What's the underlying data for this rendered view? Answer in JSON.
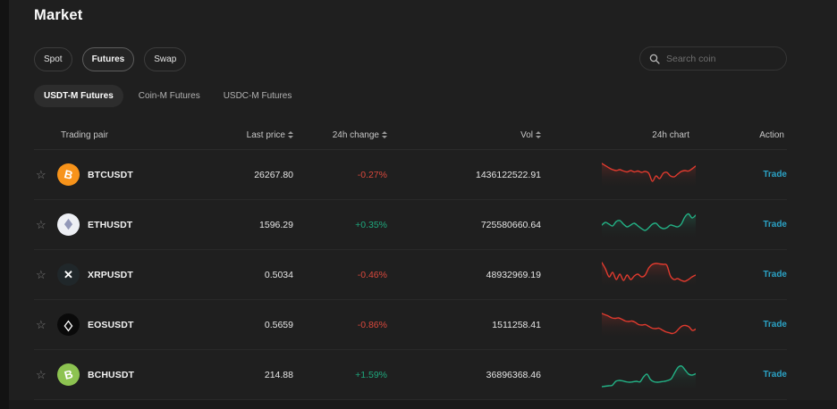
{
  "page": {
    "title": "Market"
  },
  "tabs": [
    {
      "label": "Spot",
      "active": false
    },
    {
      "label": "Futures",
      "active": true
    },
    {
      "label": "Swap",
      "active": false
    }
  ],
  "search": {
    "placeholder": "Search coin",
    "icon": "search-icon"
  },
  "subtabs": [
    {
      "label": "USDT-M Futures",
      "active": true
    },
    {
      "label": "Coin-M Futures",
      "active": false
    },
    {
      "label": "USDC-M Futures",
      "active": false
    }
  ],
  "table": {
    "headers": {
      "pair": "Trading pair",
      "price": "Last price",
      "change": "24h change",
      "vol": "Vol",
      "chart": "24h chart",
      "action": "Action"
    },
    "rows": [
      {
        "symbol": "BTCUSDT",
        "icon": {
          "glyph": "B",
          "bg": "#f7931a",
          "fg": "#ffffff",
          "rot": 14,
          "sy": 1,
          "size": 13
        },
        "price": "26267.80",
        "change": "-0.27%",
        "direction": "down",
        "vol": "1436122522.91",
        "action": "Trade",
        "spark": [
          7,
          9.5,
          12,
          14,
          15,
          14,
          15.5,
          16.5,
          15,
          16.5,
          15.5,
          17,
          16,
          18,
          27,
          21,
          24,
          18,
          17,
          21,
          22,
          19,
          16,
          15,
          15.5,
          13,
          10
        ]
      },
      {
        "symbol": "ETHUSDT",
        "icon": {
          "glyph": "◆",
          "bg": "#edeff4",
          "fg": "#9298b8",
          "rot": 0,
          "sy": 1.35,
          "size": 11
        },
        "price": "1596.29",
        "change": "+0.35%",
        "direction": "up",
        "vol": "725580660.64",
        "action": "Trade",
        "spark": [
          20,
          17,
          19,
          21,
          16,
          15,
          19,
          22,
          20,
          18,
          21,
          24,
          26,
          23,
          19,
          18,
          22,
          24,
          23,
          20,
          21,
          22,
          19,
          11,
          7.5,
          12,
          9
        ]
      },
      {
        "symbol": "XRPUSDT",
        "icon": {
          "glyph": "✕",
          "bg": "#20272a",
          "fg": "#ffffff",
          "rot": 0,
          "sy": 1,
          "size": 13
        },
        "price": "0.5034",
        "change": "-0.46%",
        "direction": "down",
        "vol": "48932969.19",
        "action": "Trade",
        "spark": [
          6,
          13,
          22,
          17,
          25,
          19,
          26,
          20,
          25,
          21,
          19,
          22,
          20,
          12,
          8,
          7,
          7.5,
          8,
          9,
          21,
          25,
          24,
          26,
          27,
          25,
          22,
          20
        ]
      },
      {
        "symbol": "EOSUSDT",
        "icon": {
          "glyph": "◇",
          "bg": "#0a0a0a",
          "fg": "#ffffff",
          "rot": 0,
          "sy": 1.3,
          "size": 12
        },
        "price": "0.5659",
        "change": "-0.86%",
        "direction": "down",
        "vol": "1511258.41",
        "action": "Trade",
        "spark": [
          7,
          8.5,
          10,
          12,
          12.5,
          12,
          13.5,
          15.5,
          16,
          15.5,
          17,
          19.5,
          20,
          19.5,
          21.5,
          23.5,
          24,
          23.5,
          25.5,
          27.5,
          28.5,
          29.5,
          28,
          24,
          21,
          20.5,
          22,
          26,
          24.5
        ]
      },
      {
        "symbol": "BCHUSDT",
        "icon": {
          "glyph": "B",
          "bg": "#8dc351",
          "fg": "#ffffff",
          "rot": -14,
          "sy": 1,
          "size": 13
        },
        "price": "214.88",
        "change": "+1.59%",
        "direction": "up",
        "vol": "36896368.46",
        "action": "Trade",
        "spark": [
          33,
          32.5,
          32,
          31.5,
          27,
          26,
          26.5,
          27.5,
          28,
          27.5,
          27,
          27.5,
          22,
          19,
          25,
          27.5,
          28,
          27.5,
          27,
          26,
          24,
          17,
          11,
          10,
          14.5,
          19,
          20,
          18.5
        ]
      }
    ]
  },
  "colors": {
    "up": "#1fa87d",
    "down": "#d9483c",
    "spark_up": "#23b185",
    "spark_down": "#e03a2e",
    "trade": "#2ba2c5"
  }
}
